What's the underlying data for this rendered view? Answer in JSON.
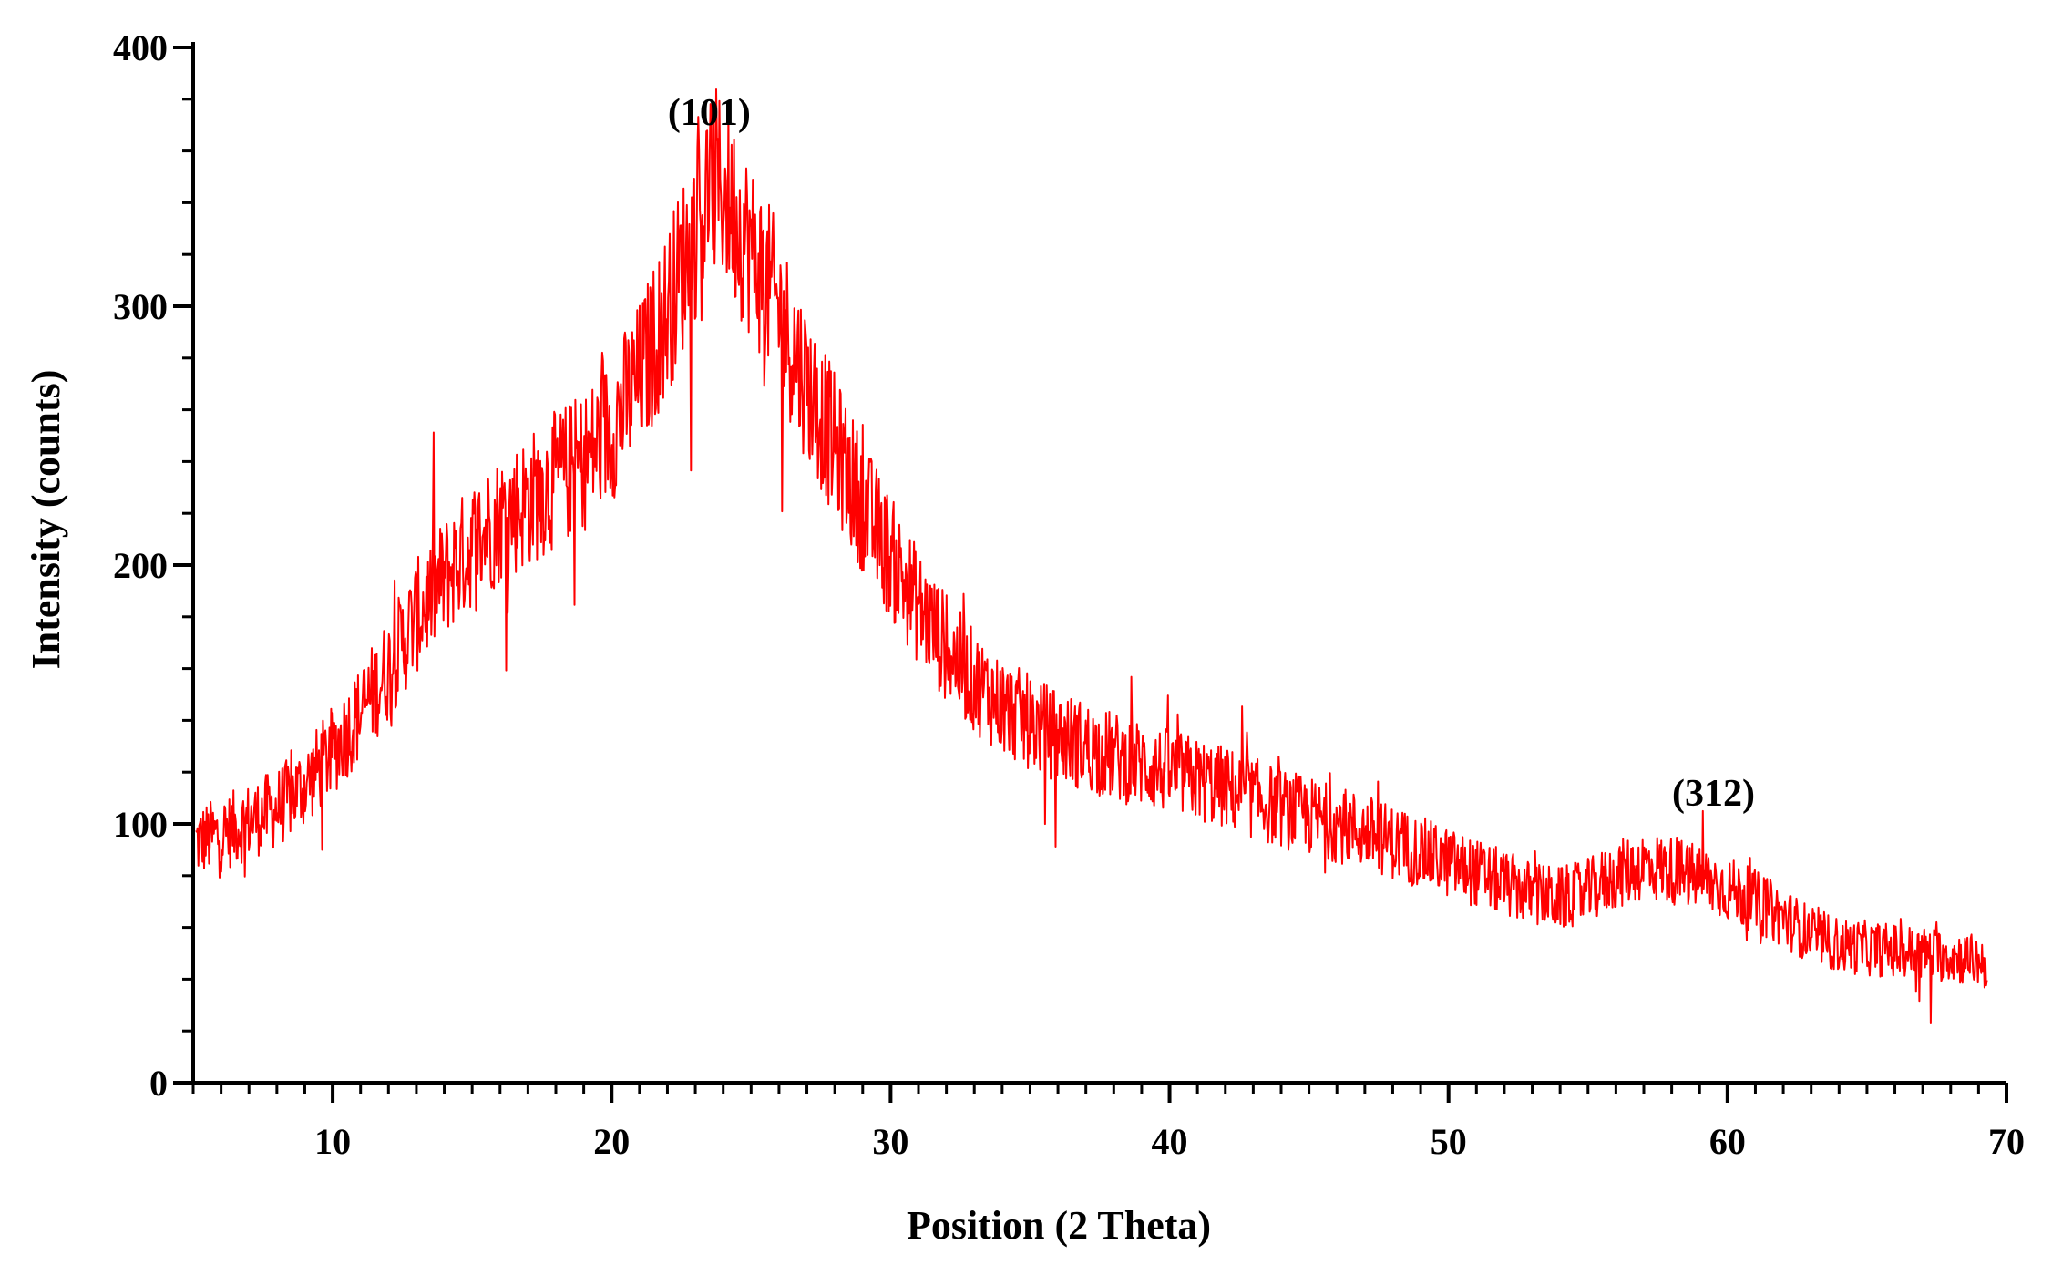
{
  "chart_data": {
    "type": "line",
    "title": "",
    "xlabel": "Position (2 Theta)",
    "ylabel": "Intensity (counts)",
    "xlim": [
      5,
      70
    ],
    "ylim": [
      0,
      400
    ],
    "x_ticks": [
      10,
      20,
      30,
      40,
      50,
      60,
      70
    ],
    "y_ticks": [
      0,
      100,
      200,
      300,
      400
    ],
    "x_tick_labels": [
      "10",
      "20",
      "30",
      "40",
      "50",
      "60",
      "70"
    ],
    "y_tick_labels": [
      "0",
      "100",
      "200",
      "300",
      "400"
    ],
    "grid": false,
    "legend": "none",
    "line_color": "#ff0000",
    "annotations": [
      {
        "text": "(101)",
        "x": 23.5,
        "y": 375
      },
      {
        "text": "(312)",
        "x": 59.5,
        "y": 112
      }
    ],
    "series": [
      {
        "x": [
          5.1,
          6,
          7,
          8,
          9,
          10,
          11,
          12,
          13,
          14,
          15,
          16,
          17,
          18,
          19,
          20,
          21,
          22,
          23,
          23.6,
          24,
          25,
          26,
          27,
          28,
          29,
          30,
          31,
          32,
          33,
          34,
          35,
          36,
          37,
          38,
          39,
          40,
          41,
          42,
          43,
          44,
          45,
          46,
          47,
          48,
          49,
          50,
          51,
          52,
          53,
          54,
          55,
          56,
          57,
          58,
          59,
          60,
          61,
          62,
          63,
          64,
          65,
          66,
          67,
          68,
          69,
          69.3
        ],
        "values": [
          93,
          96,
          101,
          106,
          115,
          128,
          143,
          160,
          180,
          195,
          208,
          218,
          225,
          233,
          240,
          253,
          272,
          298,
          330,
          348,
          345,
          322,
          298,
          270,
          246,
          223,
          203,
          184,
          168,
          155,
          146,
          139,
          134,
          130,
          126,
          123,
          120,
          117,
          114,
          110,
          106,
          103,
          100,
          97,
          93,
          89,
          85,
          81,
          77,
          73,
          71,
          74,
          80,
          84,
          82,
          79,
          75,
          70,
          64,
          57,
          53,
          52,
          51,
          50,
          49,
          47,
          46
        ]
      }
    ]
  }
}
